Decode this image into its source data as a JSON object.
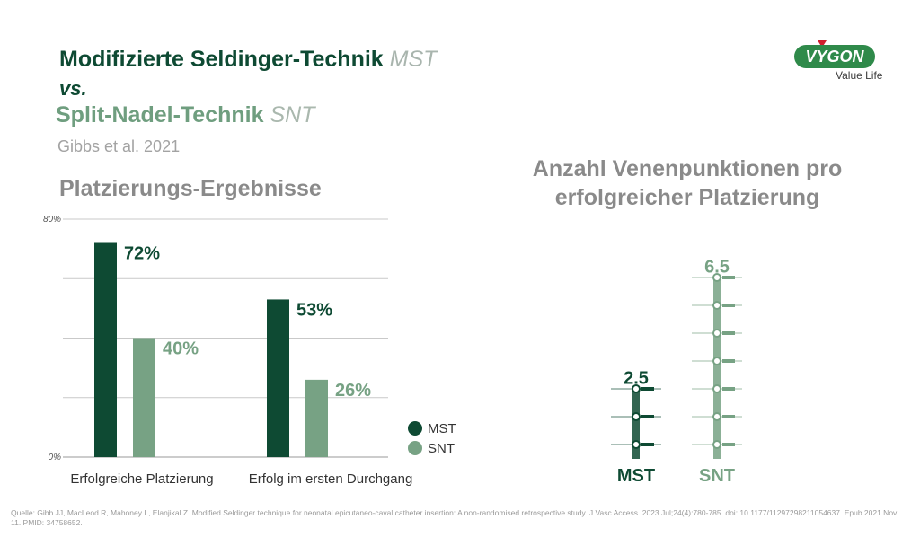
{
  "header": {
    "title_main": "Modifizierte Seldinger-Technik",
    "title_main_abbr": "MST",
    "versus": "vs.",
    "title_alt": "Split-Nadel-Technik",
    "title_alt_abbr": "SNT",
    "citation": "Gibbs et al. 2021"
  },
  "logo": {
    "name": "VYGON",
    "tagline": "Value Life"
  },
  "colors": {
    "mst": "#0e4a33",
    "snt": "#77a284",
    "grid": "#c9c9c9",
    "text_gray": "#8a8a8a"
  },
  "chart_data": [
    {
      "type": "bar",
      "title": "Platzierungs-Ergebnisse",
      "categories": [
        "Erfolgreiche Platzierung",
        "Erfolg im ersten Durchgang"
      ],
      "series": [
        {
          "name": "MST",
          "values": [
            72,
            53
          ]
        },
        {
          "name": "SNT",
          "values": [
            40,
            26
          ]
        }
      ],
      "value_labels": [
        [
          "72%",
          "53%"
        ],
        [
          "40%",
          "26%"
        ]
      ],
      "ylim": [
        0,
        80
      ],
      "y_tick_labels": [
        "80%",
        "0%"
      ],
      "grid": true,
      "legend": "bottom-right"
    },
    {
      "type": "bar",
      "title": "Anzahl Venenpunktionen pro erfolgreicher Platzierung",
      "categories": [
        "MST",
        "SNT"
      ],
      "values": [
        2.5,
        6.5
      ],
      "value_labels": [
        "2.5",
        "6.5"
      ],
      "icon": "needle-icon"
    }
  ],
  "footer": {
    "source": "Quelle: Gibb JJ, MacLeod R, Mahoney L, Elanjikal Z. Modified Seldinger technique for neonatal epicutaneo-caval catheter insertion: A non-randomised retrospective study. J Vasc Access. 2023 Jul;24(4):780-785. doi: 10.1177/11297298211054637. Epub 2021 Nov 11. PMID: 34758652."
  }
}
